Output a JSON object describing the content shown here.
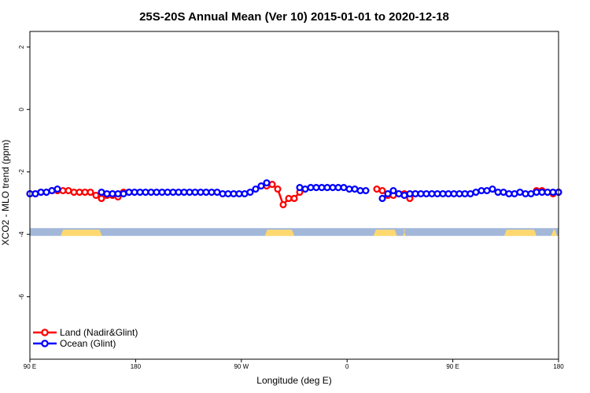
{
  "chart_data": {
    "type": "line",
    "title": "25S-20S Annual Mean (Ver 10)   2015-01-01 to 2020-12-18",
    "xlabel": "Longitude (deg E)",
    "ylabel": "XCO2 - MLO trend (ppm)",
    "xlim": [
      90,
      450
    ],
    "ylim": [
      -8,
      2.5
    ],
    "xticks": [
      {
        "value": 90,
        "label": "90 E"
      },
      {
        "value": 162,
        "label": "180"
      },
      {
        "value": 234,
        "label": "90 W"
      },
      {
        "value": 306,
        "label": "0"
      },
      {
        "value": 378,
        "label": "90 E"
      },
      {
        "value": 450,
        "label": "180"
      }
    ],
    "yticks": [
      {
        "value": 2,
        "label": "2"
      },
      {
        "value": 0,
        "label": "0"
      },
      {
        "value": -2,
        "label": "-2"
      },
      {
        "value": -4,
        "label": "-4"
      },
      {
        "value": -6,
        "label": "-6"
      }
    ],
    "legend_position": "bottom-left",
    "land_ocean_strip": {
      "y_range": [
        -4.05,
        -3.8
      ],
      "ocean_color": "#a3b8d9",
      "land_color": "#ffd970",
      "land_segments": [
        [
          111,
          139
        ],
        [
          250,
          270
        ],
        [
          324,
          340
        ],
        [
          344,
          346
        ],
        [
          413,
          435
        ],
        [
          445,
          449
        ]
      ]
    },
    "series": [
      {
        "name": "Land (Nadir&Glint)",
        "color": "#ff0000",
        "x": [
          90,
          93.75,
          97.5,
          101.25,
          105,
          108.75,
          112.5,
          116.25,
          120,
          123.75,
          127.5,
          131.25,
          135,
          138.75,
          142.5,
          146.25,
          150,
          153.75,
          157.5,
          251.25,
          255,
          258.75,
          262.5,
          266.25,
          270,
          273.75,
          326.25,
          330,
          333.75,
          337.5,
          341.25,
          345,
          348.75,
          352.5,
          435,
          438.75,
          442.5,
          446.25,
          450
        ],
        "y": [
          -2.7,
          -2.7,
          -2.65,
          -2.65,
          -2.6,
          -2.6,
          -2.6,
          -2.6,
          -2.65,
          -2.65,
          -2.65,
          -2.65,
          -2.75,
          -2.85,
          -2.75,
          -2.75,
          -2.8,
          -2.65,
          -2.65,
          -2.45,
          -2.4,
          -2.55,
          -3.05,
          -2.85,
          -2.85,
          -2.65,
          -2.55,
          -2.6,
          -2.75,
          -2.75,
          -2.7,
          -2.7,
          -2.85,
          -2.7,
          -2.6,
          -2.6,
          -2.65,
          -2.7,
          -2.65
        ]
      },
      {
        "name": "Ocean (Glint)",
        "color": "#0000ff",
        "x": [
          90,
          93.75,
          97.5,
          101.25,
          105,
          108.75,
          138.75,
          142.5,
          146.25,
          150,
          153.75,
          157.5,
          161.25,
          165,
          168.75,
          172.5,
          176.25,
          180,
          183.75,
          187.5,
          191.25,
          195,
          198.75,
          202.5,
          206.25,
          210,
          213.75,
          217.5,
          221.25,
          225,
          228.75,
          232.5,
          236.25,
          240,
          243.75,
          247.5,
          251.25,
          273.75,
          277.5,
          281.25,
          285,
          288.75,
          292.5,
          296.25,
          300,
          303.75,
          307.5,
          311.25,
          315,
          318.75,
          330,
          333.75,
          337.5,
          341.25,
          345,
          348.75,
          352.5,
          356.25,
          360,
          363.75,
          367.5,
          371.25,
          375,
          378.75,
          382.5,
          386.25,
          390,
          393.75,
          397.5,
          401.25,
          405,
          408.75,
          412.5,
          416.25,
          420,
          423.75,
          427.5,
          431.25,
          435,
          438.75,
          442.5,
          446.25,
          450
        ],
        "y": [
          -2.7,
          -2.7,
          -2.65,
          -2.65,
          -2.6,
          -2.55,
          -2.65,
          -2.7,
          -2.7,
          -2.7,
          -2.7,
          -2.65,
          -2.65,
          -2.65,
          -2.65,
          -2.65,
          -2.65,
          -2.65,
          -2.65,
          -2.65,
          -2.65,
          -2.65,
          -2.65,
          -2.65,
          -2.65,
          -2.65,
          -2.65,
          -2.65,
          -2.7,
          -2.7,
          -2.7,
          -2.7,
          -2.7,
          -2.65,
          -2.55,
          -2.45,
          -2.35,
          -2.5,
          -2.55,
          -2.5,
          -2.5,
          -2.5,
          -2.5,
          -2.5,
          -2.5,
          -2.5,
          -2.55,
          -2.55,
          -2.6,
          -2.6,
          -2.85,
          -2.7,
          -2.6,
          -2.7,
          -2.75,
          -2.7,
          -2.7,
          -2.7,
          -2.7,
          -2.7,
          -2.7,
          -2.7,
          -2.7,
          -2.7,
          -2.7,
          -2.7,
          -2.7,
          -2.65,
          -2.6,
          -2.6,
          -2.55,
          -2.65,
          -2.65,
          -2.7,
          -2.7,
          -2.65,
          -2.7,
          -2.7,
          -2.65,
          -2.65,
          -2.65,
          -2.65,
          -2.65
        ]
      }
    ]
  }
}
